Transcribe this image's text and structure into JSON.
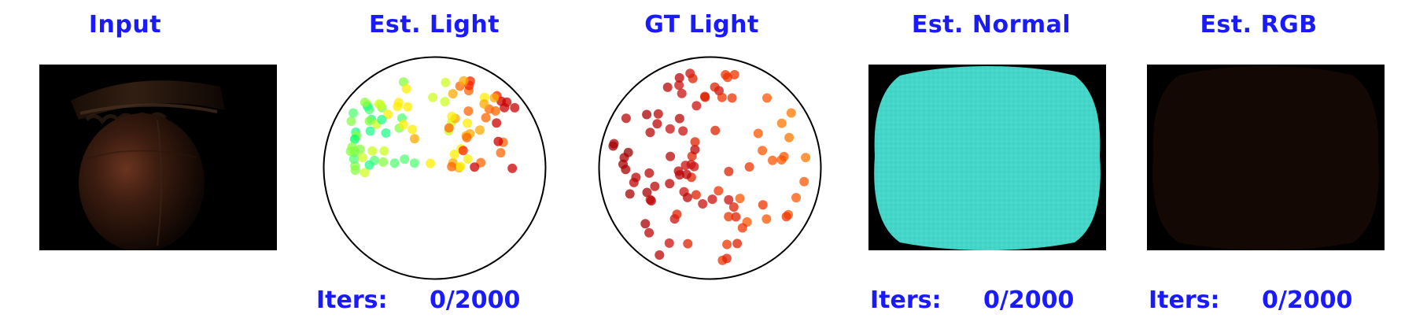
{
  "titles": {
    "input": "Input",
    "est_light": "Est. Light",
    "gt_light": "GT Light",
    "est_normal": "Est. Normal",
    "est_rgb": "Est. RGB"
  },
  "iters": {
    "label": "Iters:",
    "est_light": "0/2000",
    "est_normal": "0/2000",
    "est_rgb": "0/2000"
  },
  "colors": {
    "title_text": "#1a1aff",
    "image_background": "#000000",
    "normal_fill": "#45d6c9",
    "sphere_outline": "#000000"
  },
  "icons": {
    "input_image": "rendered-object-image",
    "est_normal_image": "normal-map-image",
    "est_rgb_image": "rgb-render-image"
  }
}
